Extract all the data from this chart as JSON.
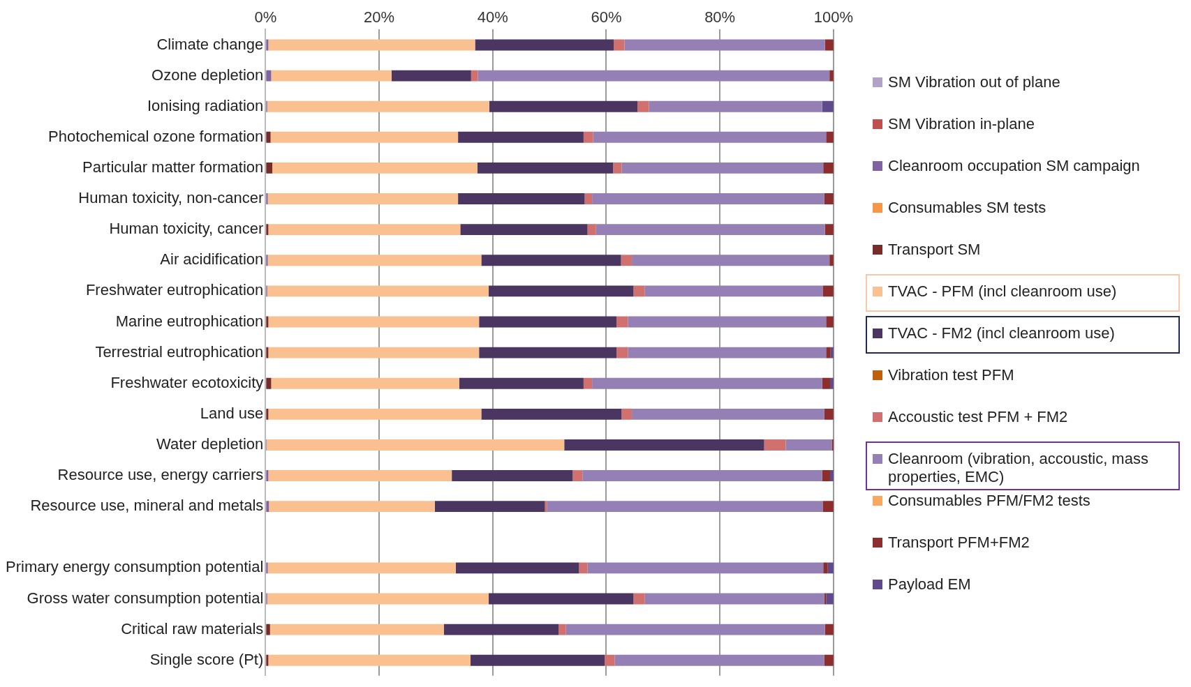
{
  "chart_data": {
    "type": "bar",
    "orientation": "horizontal",
    "stacked": true,
    "categories": [
      "Climate change",
      "Ozone depletion",
      "Ionising radiation",
      "Photochemical ozone formation",
      "Particular matter formation",
      "Human toxicity, non-cancer",
      "Human toxicity, cancer",
      "Air acidification",
      "Freshwater eutrophication",
      "Marine eutrophication",
      "Terrestrial eutrophication",
      "Freshwater ecotoxicity",
      "Land use",
      "Water depletion",
      "Resource use, energy carriers",
      "Resource use, mineral and metals",
      null,
      "Primary energy consumption potential",
      "Gross water consumption potential",
      "Critical raw materials",
      "Single score (Pt)"
    ],
    "xlim": [
      0,
      100
    ],
    "xticks": [
      {
        "value": 0,
        "label": "0%"
      },
      {
        "value": 20,
        "label": "20%"
      },
      {
        "value": 40,
        "label": "40%"
      },
      {
        "value": 60,
        "label": "60%"
      },
      {
        "value": 80,
        "label": "80%"
      },
      {
        "value": 100,
        "label": "100%"
      }
    ],
    "grid": "x",
    "legend": "right",
    "series": [
      {
        "name": "SM Vibration out of plane",
        "color": "#b3a2c7",
        "values": [
          0,
          0,
          0,
          0,
          0,
          0,
          0,
          0,
          0,
          0,
          0,
          0,
          0,
          0,
          0,
          0,
          null,
          0,
          0,
          0,
          0
        ]
      },
      {
        "name": "SM Vibration in-plane",
        "color": "#c0504d",
        "values": [
          0,
          0,
          0,
          0,
          0,
          0,
          0,
          0,
          0,
          0,
          0,
          0,
          0,
          0,
          0,
          0,
          null,
          0,
          0,
          0,
          0
        ]
      },
      {
        "name": "Cleanroom occupation SM campaign",
        "color": "#8064a2",
        "values": [
          0.5,
          1.0,
          0.3,
          0,
          0,
          0.4,
          0,
          0.4,
          0.3,
          0,
          0,
          0,
          0,
          0.2,
          0.5,
          0.6,
          null,
          0.4,
          0.3,
          0,
          0
        ]
      },
      {
        "name": "Consumables SM tests",
        "color": "#f79646",
        "values": [
          0,
          0,
          0,
          0,
          0,
          0,
          0,
          0,
          0,
          0,
          0,
          0,
          0,
          0,
          0,
          0,
          null,
          0,
          0,
          0,
          0
        ]
      },
      {
        "name": "Transport SM",
        "color": "#772c2a",
        "values": [
          0,
          0,
          0,
          0.9,
          1.2,
          0,
          0.5,
          0,
          0,
          0.5,
          0.5,
          1.0,
          0.5,
          0,
          0,
          0,
          null,
          0,
          0,
          0.8,
          0.5
        ]
      },
      {
        "name": "TVAC - PFM (incl cleanroom use)",
        "color": "#fac090",
        "values": [
          36.4,
          21.2,
          39.1,
          33.0,
          36.1,
          33.5,
          33.8,
          37.6,
          39.0,
          37.1,
          37.1,
          33.1,
          37.5,
          52.4,
          32.3,
          29.2,
          null,
          33.1,
          39.0,
          30.6,
          35.6
        ]
      },
      {
        "name": "TVAC - FM2 (incl cleanroom use)",
        "color": "#4a3660",
        "values": [
          24.4,
          14.0,
          26.1,
          22.1,
          23.9,
          22.3,
          22.4,
          24.6,
          25.5,
          24.2,
          24.2,
          21.9,
          24.7,
          35.2,
          21.3,
          19.4,
          null,
          21.7,
          25.5,
          20.2,
          23.6
        ]
      },
      {
        "name": "Vibration test PFM",
        "color": "#c0600a",
        "values": [
          0,
          0,
          0,
          0,
          0,
          0,
          0,
          0,
          0,
          0,
          0,
          0,
          0,
          0,
          0,
          0,
          null,
          0,
          0,
          0,
          0
        ]
      },
      {
        "name": "Accoustic test PFM + FM2",
        "color": "#d0716f",
        "values": [
          1.9,
          1.2,
          2.0,
          1.7,
          1.5,
          1.3,
          1.5,
          1.9,
          2.0,
          2.0,
          2.0,
          1.5,
          1.8,
          3.8,
          1.7,
          0.4,
          null,
          1.5,
          2.0,
          1.3,
          1.8
        ]
      },
      {
        "name": "Cleanroom (vibration, accoustic, mass properties, EMC)",
        "color": "#9580b5",
        "values": [
          35.3,
          61.9,
          30.5,
          41.0,
          35.5,
          40.9,
          40.3,
          34.8,
          31.3,
          34.9,
          34.9,
          40.5,
          33.9,
          8.1,
          42.2,
          48.5,
          null,
          41.5,
          31.6,
          45.6,
          36.9
        ]
      },
      {
        "name": "Consumables PFM/FM2 tests",
        "color": "#f9a860",
        "values": [
          0,
          0,
          0,
          0,
          0,
          0,
          0,
          0,
          0,
          0,
          0,
          0,
          0,
          0,
          0,
          0,
          null,
          0,
          0,
          0,
          0
        ]
      },
      {
        "name": "Transport PFM+FM2",
        "color": "#8c2e2e",
        "values": [
          1.5,
          0.7,
          0,
          1.3,
          1.8,
          1.6,
          1.5,
          0.7,
          1.9,
          1.3,
          0.8,
          1.4,
          1.6,
          0.3,
          1.4,
          1.9,
          null,
          0.8,
          0.3,
          1.5,
          1.6
        ]
      },
      {
        "name": "Payload EM",
        "color": "#5f4a8b",
        "values": [
          0,
          0,
          2.0,
          0,
          0,
          0,
          0,
          0,
          0,
          0,
          0.5,
          0.6,
          0,
          0,
          0.6,
          0,
          null,
          1.0,
          1.3,
          0,
          0
        ]
      }
    ]
  }
}
